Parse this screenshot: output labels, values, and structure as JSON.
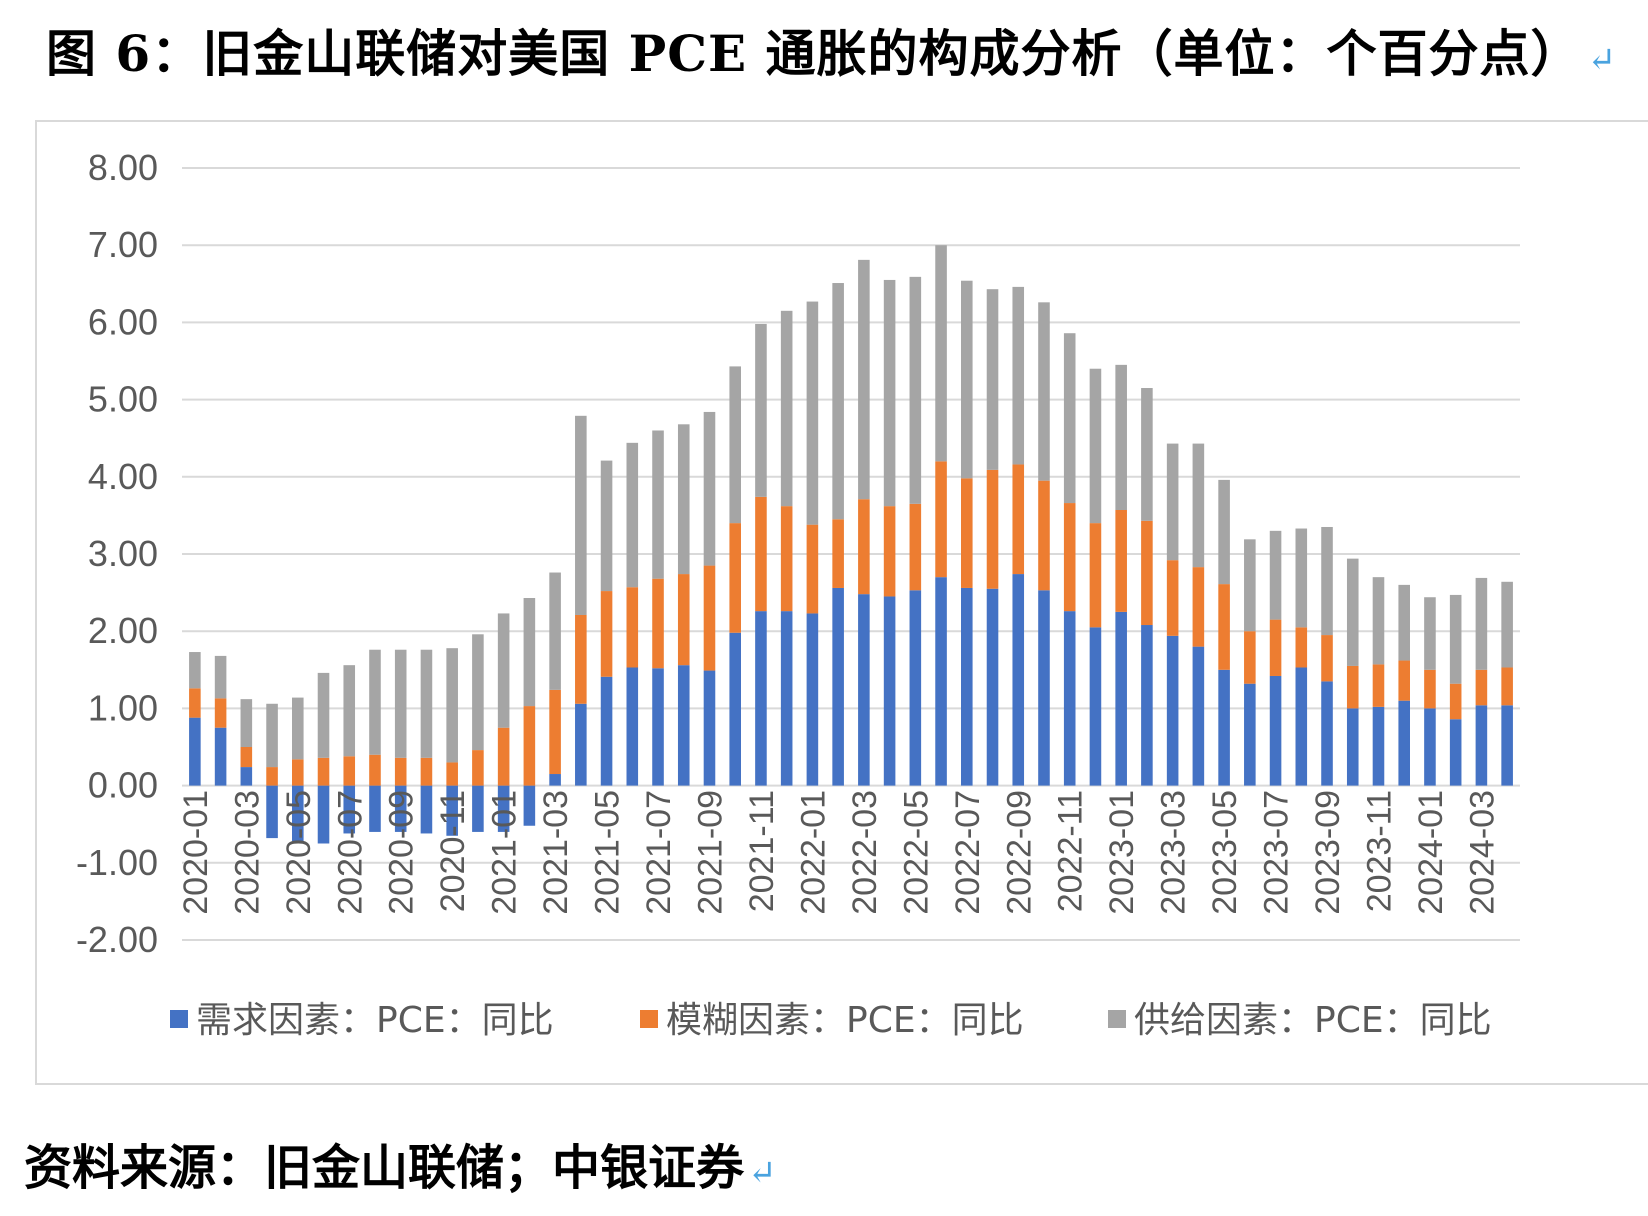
{
  "title": "图 6：旧金山联储对美国 PCE 通胀的构成分析（单位：个百分点）",
  "source": "资料来源：旧金山联储；中银证券",
  "colors": {
    "demand": "#4472c4",
    "ambiguous": "#ed7d31",
    "supply": "#a5a5a5",
    "grid": "#d9d9d9",
    "text": "#595959"
  },
  "chart_data": {
    "type": "bar",
    "stacked": true,
    "title": "",
    "xlabel": "",
    "ylabel": "",
    "ylim": [
      -2,
      8
    ],
    "yticks": [
      "8.00",
      "7.00",
      "6.00",
      "5.00",
      "4.00",
      "3.00",
      "2.00",
      "1.00",
      "0.00",
      "-1.00",
      "-2.00"
    ],
    "grid": true,
    "legend_position": "bottom",
    "categories": [
      "2020-01",
      "2020-02",
      "2020-03",
      "2020-04",
      "2020-05",
      "2020-06",
      "2020-07",
      "2020-08",
      "2020-09",
      "2020-10",
      "2020-11",
      "2020-12",
      "2021-01",
      "2021-02",
      "2021-03",
      "2021-04",
      "2021-05",
      "2021-06",
      "2021-07",
      "2021-08",
      "2021-09",
      "2021-10",
      "2021-11",
      "2021-12",
      "2022-01",
      "2022-02",
      "2022-03",
      "2022-04",
      "2022-05",
      "2022-06",
      "2022-07",
      "2022-08",
      "2022-09",
      "2022-10",
      "2022-11",
      "2022-12",
      "2023-01",
      "2023-02",
      "2023-03",
      "2023-04",
      "2023-05",
      "2023-06",
      "2023-07",
      "2023-08",
      "2023-09",
      "2023-10",
      "2023-11",
      "2023-12",
      "2024-01",
      "2024-02",
      "2024-03",
      "2024-04"
    ],
    "x_tick_labels": [
      "2020-01",
      "2020-03",
      "2020-05",
      "2020-07",
      "2020-09",
      "2020-11",
      "2021-01",
      "2021-03",
      "2021-05",
      "2021-07",
      "2021-09",
      "2021-11",
      "2022-01",
      "2022-03",
      "2022-05",
      "2022-07",
      "2022-09",
      "2022-11",
      "2023-01",
      "2023-03",
      "2023-05",
      "2023-07",
      "2023-09",
      "2023-11",
      "2024-01",
      "2024-03"
    ],
    "series": [
      {
        "name": "需求因素：PCE：同比",
        "color_key": "demand",
        "values": [
          0.88,
          0.75,
          0.24,
          -0.68,
          -0.72,
          -0.75,
          -0.62,
          -0.6,
          -0.6,
          -0.62,
          -0.65,
          -0.6,
          -0.6,
          -0.52,
          0.15,
          1.06,
          1.41,
          1.53,
          1.52,
          1.56,
          1.49,
          1.98,
          2.26,
          2.26,
          2.23,
          2.56,
          2.48,
          2.45,
          2.53,
          2.7,
          2.56,
          2.55,
          2.74,
          2.53,
          2.26,
          2.05,
          2.25,
          2.08,
          1.94,
          1.8,
          1.5,
          1.32,
          1.42,
          1.53,
          1.35,
          1.0,
          1.02,
          1.1,
          1.0,
          0.86,
          1.04,
          1.04
        ]
      },
      {
        "name": "模糊因素：PCE：同比",
        "color_key": "ambiguous",
        "values": [
          0.38,
          0.38,
          0.26,
          0.24,
          0.34,
          0.36,
          0.38,
          0.4,
          0.36,
          0.36,
          0.3,
          0.46,
          0.75,
          1.03,
          1.09,
          1.15,
          1.11,
          1.04,
          1.16,
          1.18,
          1.36,
          1.42,
          1.48,
          1.36,
          1.15,
          0.89,
          1.23,
          1.17,
          1.12,
          1.5,
          1.42,
          1.54,
          1.42,
          1.42,
          1.4,
          1.35,
          1.32,
          1.35,
          0.98,
          1.03,
          1.11,
          0.68,
          0.73,
          0.52,
          0.6,
          0.55,
          0.55,
          0.52,
          0.5,
          0.46,
          0.46,
          0.49
        ]
      },
      {
        "name": "供给因素：PCE：同比",
        "color_key": "supply",
        "values": [
          0.47,
          0.55,
          0.62,
          0.82,
          0.8,
          1.1,
          1.18,
          1.36,
          1.4,
          1.4,
          1.48,
          1.5,
          1.48,
          1.4,
          1.52,
          2.58,
          1.69,
          1.87,
          1.92,
          1.94,
          1.99,
          2.03,
          2.24,
          2.53,
          2.89,
          3.06,
          3.1,
          2.93,
          2.94,
          2.8,
          2.56,
          2.34,
          2.3,
          2.31,
          2.2,
          2.0,
          1.88,
          1.72,
          1.51,
          1.6,
          1.35,
          1.19,
          1.15,
          1.28,
          1.4,
          1.39,
          1.13,
          0.98,
          0.94,
          1.15,
          1.19,
          1.11
        ]
      }
    ]
  }
}
